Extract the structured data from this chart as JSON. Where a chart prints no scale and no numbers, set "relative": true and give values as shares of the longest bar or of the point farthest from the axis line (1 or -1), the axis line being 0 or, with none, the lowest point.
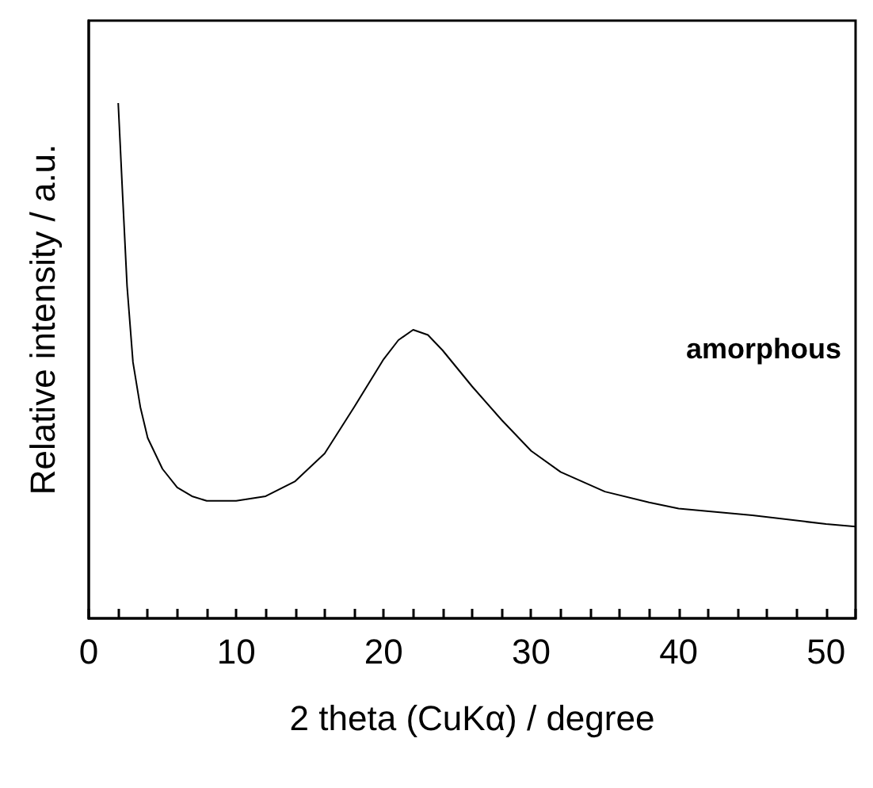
{
  "chart_data": {
    "type": "line",
    "relative": true,
    "xlabel": "2 theta (CuKα) / degree",
    "ylabel": "Relative intensity / a.u.",
    "annotations": [
      "amorphous"
    ],
    "xlim": [
      0,
      52
    ],
    "xticks": [
      0,
      {
        "value": 2,
        "label": null
      },
      {
        "value": 4,
        "label": null
      },
      {
        "value": 6,
        "label": null
      },
      {
        "value": 8,
        "label": null
      },
      10,
      {
        "value": 12,
        "label": null
      },
      {
        "value": 14,
        "label": null
      },
      {
        "value": 16,
        "label": null
      },
      {
        "value": 18,
        "label": null
      },
      20,
      {
        "value": 22,
        "label": null
      },
      {
        "value": 24,
        "label": null
      },
      {
        "value": 26,
        "label": null
      },
      {
        "value": 28,
        "label": null
      },
      30,
      {
        "value": 32,
        "label": null
      },
      {
        "value": 34,
        "label": null
      },
      {
        "value": 36,
        "label": null
      },
      {
        "value": 38,
        "label": null
      },
      40,
      {
        "value": 42,
        "label": null
      },
      {
        "value": 44,
        "label": null
      },
      {
        "value": 46,
        "label": null
      },
      {
        "value": 48,
        "label": null
      },
      50,
      {
        "value": 52,
        "label": null
      }
    ],
    "series": [
      {
        "color": "#000000",
        "x": [
          2.0,
          2.3,
          2.6,
          3.0,
          3.5,
          4,
          5,
          6,
          7,
          8,
          10,
          12,
          14,
          16,
          18,
          20,
          21,
          22,
          23,
          24,
          26,
          28,
          30,
          32,
          35,
          38,
          40,
          45,
          50,
          52
        ],
        "values": [
          1.0,
          0.82,
          0.645,
          0.497,
          0.41,
          0.35,
          0.29,
          0.254,
          0.237,
          0.228,
          0.228,
          0.237,
          0.266,
          0.32,
          0.41,
          0.503,
          0.54,
          0.56,
          0.55,
          0.52,
          0.45,
          0.385,
          0.325,
          0.284,
          0.246,
          0.225,
          0.213,
          0.2,
          0.183,
          0.178
        ]
      }
    ],
    "marker": "none",
    "line_style": "solid"
  }
}
